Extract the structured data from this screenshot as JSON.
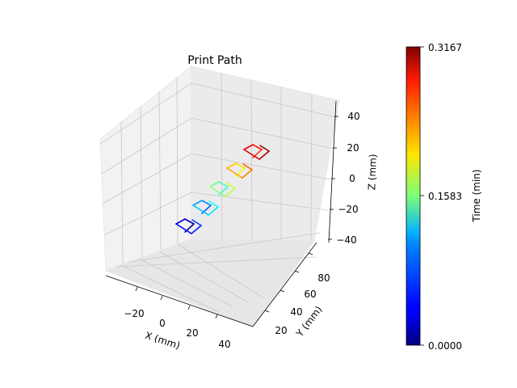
{
  "chart_data": {
    "type": "line3d",
    "title": "Print Path",
    "xlabel": "X (mm)",
    "ylabel": "Y (mm)",
    "zlabel": "Z (mm)",
    "xticks": [
      "−20",
      "0",
      "20",
      "40"
    ],
    "yticks": [
      "20",
      "40",
      "60",
      "80"
    ],
    "zticks": [
      "−40",
      "−20",
      "0",
      "20",
      "40"
    ],
    "xlim": [
      -40,
      50
    ],
    "ylim": [
      10,
      95
    ],
    "zlim": [
      -45,
      45
    ],
    "grid": true,
    "colorbar": {
      "label": "Time (min)",
      "colormap": "jet",
      "min": 0.0,
      "max": 0.3167,
      "ticks": [
        "0.0000",
        "0.1583",
        "0.3167"
      ]
    },
    "path": {
      "segments_per_layer": 6,
      "layer_count": 5,
      "time_range": [
        0.0,
        0.3167
      ]
    }
  }
}
